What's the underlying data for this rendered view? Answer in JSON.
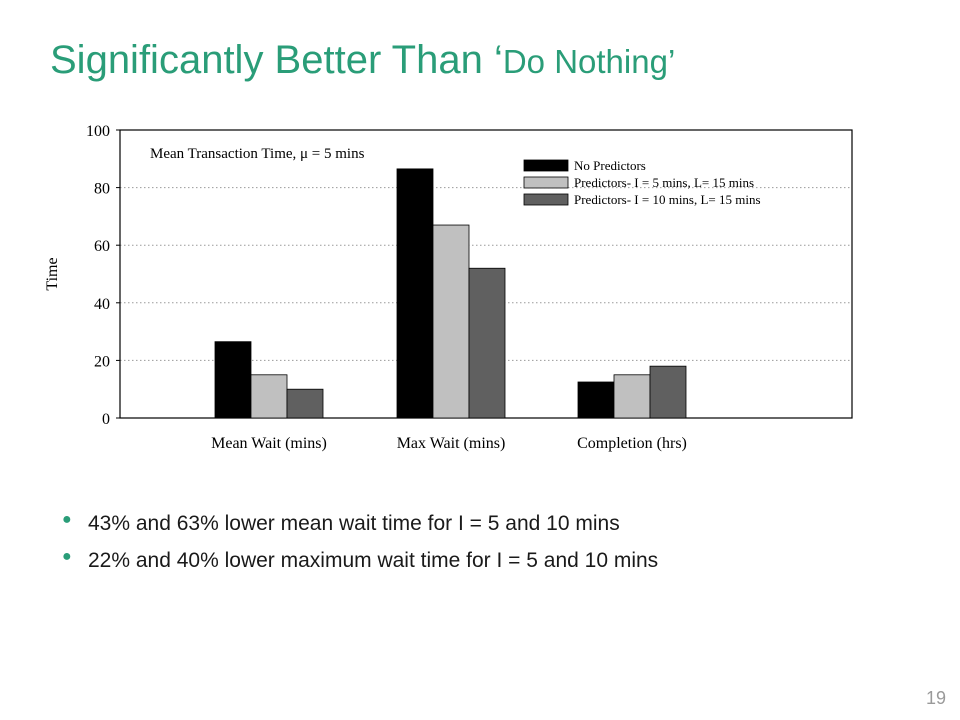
{
  "slide": {
    "title_main": "Significantly Better Than ‘",
    "title_small": "Do Nothing’",
    "page_number": "19"
  },
  "bullets": [
    "43% and 63% lower mean wait time for I = 5 and 10 mins",
    "22% and 40% lower maximum wait time for I = 5 and 10 mins"
  ],
  "chart_data": {
    "type": "bar",
    "title": "Mean Transaction Time, μ = 5 mins",
    "xlabel": "",
    "ylabel": "Time",
    "ylim": [
      0,
      100
    ],
    "yticks": [
      0,
      20,
      40,
      60,
      80,
      100
    ],
    "grid": true,
    "legend_position": "top-right",
    "categories": [
      "Mean Wait (mins)",
      "Max Wait (mins)",
      "Completion (hrs)"
    ],
    "series": [
      {
        "name": "No Predictors",
        "color": "#000000",
        "values": [
          26.5,
          86.5,
          12.5
        ]
      },
      {
        "name": "Predictors- I = 5 mins, L= 15 mins",
        "color": "#c0c0c0",
        "values": [
          15,
          67,
          15
        ]
      },
      {
        "name": "Predictors- I = 10 mins, L= 15 mins",
        "color": "#606060",
        "values": [
          10,
          52,
          18
        ]
      }
    ]
  }
}
